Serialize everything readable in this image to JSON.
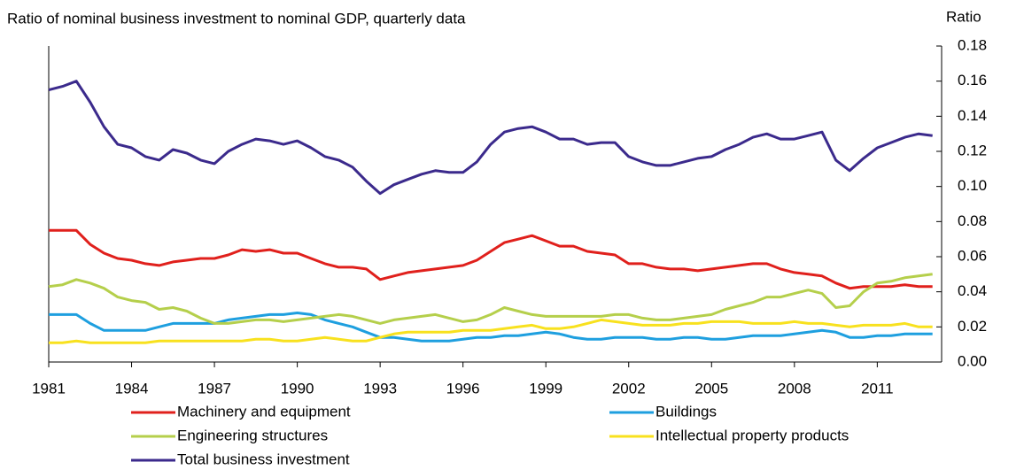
{
  "chart_data": {
    "type": "line",
    "title": "Ratio of nominal business investment to nominal GDP, quarterly data",
    "y_label": "Ratio",
    "x": [
      1981,
      1981.5,
      1982,
      1982.5,
      1983,
      1983.5,
      1984,
      1984.5,
      1985,
      1985.5,
      1986,
      1986.5,
      1987,
      1987.5,
      1988,
      1988.5,
      1989,
      1989.5,
      1990,
      1990.5,
      1991,
      1991.5,
      1992,
      1992.5,
      1993,
      1993.5,
      1994,
      1994.5,
      1995,
      1995.5,
      1996,
      1996.5,
      1997,
      1997.5,
      1998,
      1998.5,
      1999,
      1999.5,
      2000,
      2000.5,
      2001,
      2001.5,
      2002,
      2002.5,
      2003,
      2003.5,
      2004,
      2004.5,
      2005,
      2005.5,
      2006,
      2006.5,
      2007,
      2007.5,
      2008,
      2008.5,
      2009,
      2009.5,
      2010,
      2010.5,
      2011,
      2011.5,
      2012,
      2012.5,
      2013
    ],
    "xlim": [
      1981,
      2013.33
    ],
    "xticks": [
      1981,
      1984,
      1987,
      1990,
      1993,
      1996,
      1999,
      2002,
      2005,
      2008,
      2011
    ],
    "ylim": [
      0,
      0.18
    ],
    "yticks": [
      {
        "value": 0,
        "label": "0.00"
      },
      {
        "value": 0.02,
        "label": "0.02"
      },
      {
        "value": 0.04,
        "label": "0.04"
      },
      {
        "value": 0.06,
        "label": "0.06"
      },
      {
        "value": 0.08,
        "label": "0.08"
      },
      {
        "value": 0.1,
        "label": "0.10"
      },
      {
        "value": 0.12,
        "label": "0.12"
      },
      {
        "value": 0.14,
        "label": "0.14"
      },
      {
        "value": 0.16,
        "label": "0.16"
      },
      {
        "value": 0.18,
        "label": "0.18"
      }
    ],
    "y_axis_side": "right",
    "legend": "bottom",
    "series": [
      {
        "name": "Machinery and equipment",
        "color": "#e0201c",
        "values": [
          0.075,
          0.075,
          0.075,
          0.067,
          0.062,
          0.059,
          0.058,
          0.056,
          0.055,
          0.057,
          0.058,
          0.059,
          0.059,
          0.061,
          0.064,
          0.063,
          0.064,
          0.062,
          0.062,
          0.059,
          0.056,
          0.054,
          0.054,
          0.053,
          0.047,
          0.049,
          0.051,
          0.052,
          0.053,
          0.054,
          0.055,
          0.058,
          0.063,
          0.068,
          0.07,
          0.072,
          0.069,
          0.066,
          0.066,
          0.063,
          0.062,
          0.061,
          0.056,
          0.056,
          0.054,
          0.053,
          0.053,
          0.052,
          0.053,
          0.054,
          0.055,
          0.056,
          0.056,
          0.053,
          0.051,
          0.05,
          0.049,
          0.045,
          0.042,
          0.043,
          0.043,
          0.043,
          0.044,
          0.043,
          0.043
        ]
      },
      {
        "name": "Buildings",
        "color": "#1e9fdf",
        "values": [
          0.027,
          0.027,
          0.027,
          0.022,
          0.018,
          0.018,
          0.018,
          0.018,
          0.02,
          0.022,
          0.022,
          0.022,
          0.022,
          0.024,
          0.025,
          0.026,
          0.027,
          0.027,
          0.028,
          0.027,
          0.024,
          0.022,
          0.02,
          0.017,
          0.014,
          0.014,
          0.013,
          0.012,
          0.012,
          0.012,
          0.013,
          0.014,
          0.014,
          0.015,
          0.015,
          0.016,
          0.017,
          0.016,
          0.014,
          0.013,
          0.013,
          0.014,
          0.014,
          0.014,
          0.013,
          0.013,
          0.014,
          0.014,
          0.013,
          0.013,
          0.014,
          0.015,
          0.015,
          0.015,
          0.016,
          0.017,
          0.018,
          0.017,
          0.014,
          0.014,
          0.015,
          0.015,
          0.016,
          0.016,
          0.016
        ]
      },
      {
        "name": "Engineering structures",
        "color": "#b5cf4b",
        "values": [
          0.043,
          0.044,
          0.047,
          0.045,
          0.042,
          0.037,
          0.035,
          0.034,
          0.03,
          0.031,
          0.029,
          0.025,
          0.022,
          0.022,
          0.023,
          0.024,
          0.024,
          0.023,
          0.024,
          0.025,
          0.026,
          0.027,
          0.026,
          0.024,
          0.022,
          0.024,
          0.025,
          0.026,
          0.027,
          0.025,
          0.023,
          0.024,
          0.027,
          0.031,
          0.029,
          0.027,
          0.026,
          0.026,
          0.026,
          0.026,
          0.026,
          0.027,
          0.027,
          0.025,
          0.024,
          0.024,
          0.025,
          0.026,
          0.027,
          0.03,
          0.032,
          0.034,
          0.037,
          0.037,
          0.039,
          0.041,
          0.039,
          0.031,
          0.032,
          0.04,
          0.045,
          0.046,
          0.048,
          0.049,
          0.05
        ]
      },
      {
        "name": "Intellectual property products",
        "color": "#f8e11e",
        "values": [
          0.011,
          0.011,
          0.012,
          0.011,
          0.011,
          0.011,
          0.011,
          0.011,
          0.012,
          0.012,
          0.012,
          0.012,
          0.012,
          0.012,
          0.012,
          0.013,
          0.013,
          0.012,
          0.012,
          0.013,
          0.014,
          0.013,
          0.012,
          0.012,
          0.014,
          0.016,
          0.017,
          0.017,
          0.017,
          0.017,
          0.018,
          0.018,
          0.018,
          0.019,
          0.02,
          0.021,
          0.019,
          0.019,
          0.02,
          0.022,
          0.024,
          0.023,
          0.022,
          0.021,
          0.021,
          0.021,
          0.022,
          0.022,
          0.023,
          0.023,
          0.023,
          0.022,
          0.022,
          0.022,
          0.023,
          0.022,
          0.022,
          0.021,
          0.02,
          0.021,
          0.021,
          0.021,
          0.022,
          0.02,
          0.02
        ]
      },
      {
        "name": "Total business investment",
        "color": "#3b2a8c",
        "values": [
          0.155,
          0.157,
          0.16,
          0.148,
          0.134,
          0.124,
          0.122,
          0.117,
          0.115,
          0.121,
          0.119,
          0.115,
          0.113,
          0.12,
          0.124,
          0.127,
          0.126,
          0.124,
          0.126,
          0.122,
          0.117,
          0.115,
          0.111,
          0.103,
          0.096,
          0.101,
          0.104,
          0.107,
          0.109,
          0.108,
          0.108,
          0.114,
          0.124,
          0.131,
          0.133,
          0.134,
          0.131,
          0.127,
          0.127,
          0.124,
          0.125,
          0.125,
          0.117,
          0.114,
          0.112,
          0.112,
          0.114,
          0.116,
          0.117,
          0.121,
          0.124,
          0.128,
          0.13,
          0.127,
          0.127,
          0.129,
          0.131,
          0.115,
          0.109,
          0.116,
          0.122,
          0.125,
          0.128,
          0.13,
          0.129
        ]
      }
    ]
  }
}
